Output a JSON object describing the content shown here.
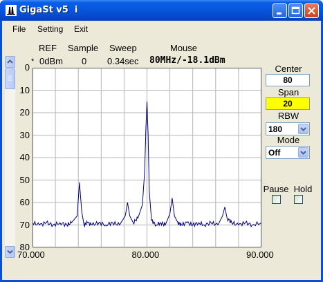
{
  "window": {
    "title": "GigaSt v5  i"
  },
  "menu": {
    "items": [
      "File",
      "Setting",
      "Exit"
    ]
  },
  "header": {
    "labels": {
      "ref": "REF",
      "sample": "Sample",
      "sweep": "Sweep",
      "mouse": "Mouse"
    },
    "values": {
      "ref_marker": "*",
      "ref": "0dBm",
      "sample": "0",
      "sweep": "0.34sec",
      "mouse": "80MHz/-18.1dBm"
    }
  },
  "chart_data": {
    "type": "line",
    "title": "",
    "xlabel": "",
    "ylabel": "",
    "xlim": [
      70.0,
      90.0
    ],
    "ylim": [
      80,
      0
    ],
    "y_inverted": true,
    "x_tick_labels": [
      "70.000",
      "80.000",
      "90.000"
    ],
    "y_tick_labels": [
      "0",
      "10",
      "20",
      "30",
      "40",
      "50",
      "60",
      "70",
      "80"
    ],
    "grid": true,
    "series": [
      {
        "x": [
          70.0,
          70.6,
          71.2,
          71.8,
          72.4,
          73.0,
          73.4,
          73.9,
          74.1,
          74.3,
          74.5,
          74.8,
          75.2,
          75.8,
          76.4,
          77.0,
          77.6,
          78.1,
          78.3,
          78.5,
          78.8,
          79.2,
          79.6,
          79.8,
          79.9,
          80.0,
          80.1,
          80.2,
          80.4,
          80.8,
          81.2,
          81.6,
          82.0,
          82.2,
          82.4,
          82.7,
          83.0,
          83.5,
          84.0,
          84.5,
          85.0,
          85.6,
          86.2,
          86.6,
          86.8,
          87.0,
          87.4,
          88.0,
          88.6,
          89.2,
          90.0
        ],
        "y": [
          69,
          70,
          69,
          70,
          69,
          70,
          69,
          66,
          51,
          64,
          70,
          69,
          70,
          69,
          70,
          69,
          70,
          66,
          60,
          66,
          69,
          67,
          61,
          46,
          28,
          15,
          30,
          55,
          68,
          70,
          69,
          70,
          65,
          58,
          66,
          69,
          70,
          69,
          70,
          69,
          70,
          69,
          70,
          66,
          62,
          67,
          69,
          70,
          69,
          70,
          69
        ],
        "color": "#000080"
      }
    ]
  },
  "controls": {
    "center": {
      "label": "Center",
      "value": "80"
    },
    "span": {
      "label": "Span",
      "value": "20"
    },
    "rbw": {
      "label": "RBW",
      "value": "180"
    },
    "mode": {
      "label": "Mode",
      "value": "Off"
    },
    "pause": {
      "label": "Pause"
    },
    "hold": {
      "label": "Hold"
    }
  },
  "colors": {
    "trace": "#000080",
    "span_background": "#ffff00",
    "grid": "#b4b4b4",
    "titlebar": "#0855dd"
  }
}
